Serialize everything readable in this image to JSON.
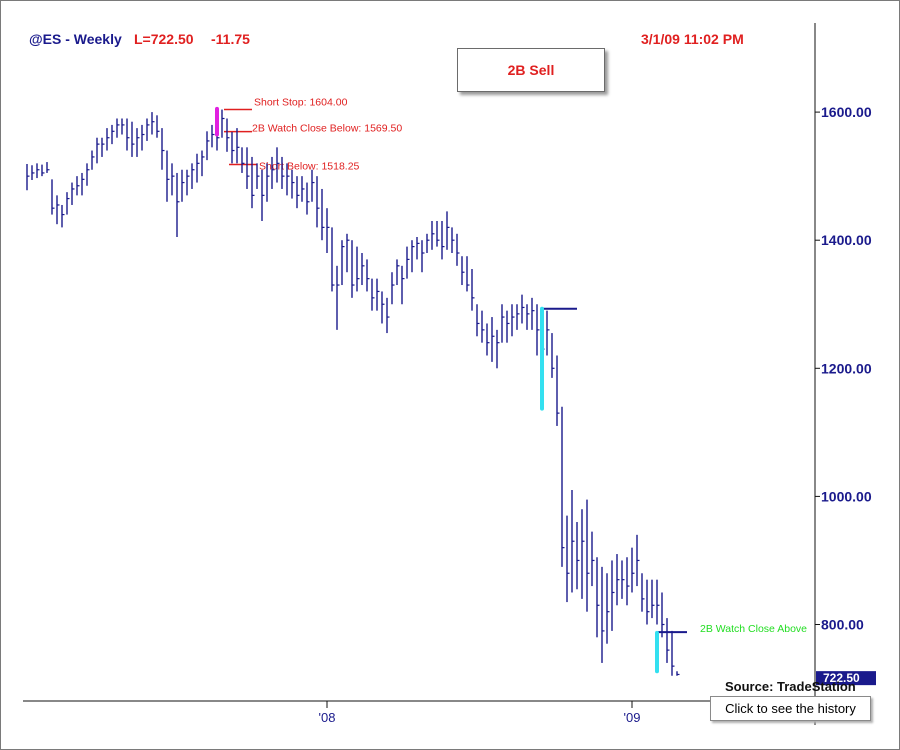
{
  "header": {
    "symbol_label": "@ES - Weekly",
    "last_label": "L=722.50",
    "change_label": "-11.75",
    "datetime_label": "3/1/09 11:02 PM"
  },
  "signal_box": {
    "label": "2B Sell"
  },
  "footer": {
    "source_label": "Source: TradeStation",
    "history_button_label": "Click to see the history"
  },
  "chart_data": {
    "type": "ohlc-bar",
    "title": "",
    "symbol": "@ES",
    "interval": "Weekly",
    "last_price": 722.5,
    "last_price_label": "722.50",
    "y_ticks": [
      {
        "value": 800,
        "label": "800.00"
      },
      {
        "value": 1000,
        "label": "1000.00"
      },
      {
        "value": 1200,
        "label": "1200.00"
      },
      {
        "value": 1400,
        "label": "1400.00"
      },
      {
        "value": 1600,
        "label": "1600.00"
      }
    ],
    "x_ticks": [
      {
        "label": "'08",
        "index": 60
      },
      {
        "label": "'09",
        "index": 121
      }
    ],
    "bar_count": 131,
    "ylim": [
      700,
      1720
    ],
    "colors": {
      "bars": "#1a1a8c",
      "sell_signal": "#e020e0",
      "buy_signal": "#33e0f0",
      "annotation_red": "#e02020",
      "annotation_green": "#22dd22"
    },
    "bars": [
      {
        "h": 1519,
        "l": 1478,
        "c": 1500
      },
      {
        "h": 1517,
        "l": 1494,
        "c": 1505
      },
      {
        "h": 1520,
        "l": 1497,
        "c": 1510
      },
      {
        "h": 1518,
        "l": 1500,
        "c": 1505
      },
      {
        "h": 1522,
        "l": 1505,
        "c": 1510
      },
      {
        "h": 1495,
        "l": 1440,
        "c": 1450
      },
      {
        "h": 1470,
        "l": 1425,
        "c": 1455
      },
      {
        "h": 1455,
        "l": 1420,
        "c": 1440
      },
      {
        "h": 1475,
        "l": 1440,
        "c": 1465
      },
      {
        "h": 1490,
        "l": 1455,
        "c": 1480
      },
      {
        "h": 1500,
        "l": 1470,
        "c": 1485
      },
      {
        "h": 1505,
        "l": 1470,
        "c": 1495
      },
      {
        "h": 1520,
        "l": 1485,
        "c": 1510
      },
      {
        "h": 1540,
        "l": 1510,
        "c": 1530
      },
      {
        "h": 1560,
        "l": 1520,
        "c": 1550
      },
      {
        "h": 1560,
        "l": 1530,
        "c": 1550
      },
      {
        "h": 1575,
        "l": 1540,
        "c": 1560
      },
      {
        "h": 1580,
        "l": 1550,
        "c": 1570
      },
      {
        "h": 1590,
        "l": 1560,
        "c": 1580
      },
      {
        "h": 1590,
        "l": 1565,
        "c": 1580
      },
      {
        "h": 1590,
        "l": 1540,
        "c": 1560
      },
      {
        "h": 1585,
        "l": 1530,
        "c": 1550
      },
      {
        "h": 1575,
        "l": 1530,
        "c": 1560
      },
      {
        "h": 1580,
        "l": 1540,
        "c": 1565
      },
      {
        "h": 1590,
        "l": 1555,
        "c": 1580
      },
      {
        "h": 1600,
        "l": 1565,
        "c": 1585
      },
      {
        "h": 1595,
        "l": 1560,
        "c": 1570
      },
      {
        "h": 1575,
        "l": 1510,
        "c": 1540
      },
      {
        "h": 1540,
        "l": 1460,
        "c": 1495
      },
      {
        "h": 1520,
        "l": 1470,
        "c": 1500
      },
      {
        "h": 1505,
        "l": 1405,
        "c": 1460
      },
      {
        "h": 1510,
        "l": 1460,
        "c": 1490
      },
      {
        "h": 1510,
        "l": 1470,
        "c": 1500
      },
      {
        "h": 1520,
        "l": 1480,
        "c": 1510
      },
      {
        "h": 1535,
        "l": 1490,
        "c": 1520
      },
      {
        "h": 1540,
        "l": 1500,
        "c": 1530
      },
      {
        "h": 1570,
        "l": 1525,
        "c": 1555
      },
      {
        "h": 1580,
        "l": 1545,
        "c": 1565
      },
      {
        "h": 1575,
        "l": 1540,
        "c": 1560
      },
      {
        "h": 1604,
        "l": 1560,
        "c": 1590
      },
      {
        "h": 1590,
        "l": 1538,
        "c": 1560
      },
      {
        "h": 1569,
        "l": 1520,
        "c": 1540
      },
      {
        "h": 1575,
        "l": 1520,
        "c": 1545
      },
      {
        "h": 1545,
        "l": 1505,
        "c": 1520
      },
      {
        "h": 1545,
        "l": 1480,
        "c": 1500
      },
      {
        "h": 1530,
        "l": 1450,
        "c": 1470
      },
      {
        "h": 1520,
        "l": 1480,
        "c": 1500
      },
      {
        "h": 1510,
        "l": 1430,
        "c": 1470
      },
      {
        "h": 1520,
        "l": 1460,
        "c": 1500
      },
      {
        "h": 1530,
        "l": 1480,
        "c": 1510
      },
      {
        "h": 1545,
        "l": 1490,
        "c": 1520
      },
      {
        "h": 1530,
        "l": 1480,
        "c": 1500
      },
      {
        "h": 1520,
        "l": 1470,
        "c": 1500
      },
      {
        "h": 1510,
        "l": 1465,
        "c": 1490
      },
      {
        "h": 1500,
        "l": 1450,
        "c": 1470
      },
      {
        "h": 1500,
        "l": 1460,
        "c": 1480
      },
      {
        "h": 1490,
        "l": 1440,
        "c": 1460
      },
      {
        "h": 1510,
        "l": 1460,
        "c": 1490
      },
      {
        "h": 1500,
        "l": 1420,
        "c": 1450
      },
      {
        "h": 1480,
        "l": 1400,
        "c": 1420
      },
      {
        "h": 1450,
        "l": 1380,
        "c": 1420
      },
      {
        "h": 1420,
        "l": 1320,
        "c": 1330
      },
      {
        "h": 1360,
        "l": 1260,
        "c": 1330
      },
      {
        "h": 1400,
        "l": 1330,
        "c": 1390
      },
      {
        "h": 1410,
        "l": 1350,
        "c": 1400
      },
      {
        "h": 1400,
        "l": 1310,
        "c": 1330
      },
      {
        "h": 1390,
        "l": 1320,
        "c": 1340
      },
      {
        "h": 1380,
        "l": 1330,
        "c": 1360
      },
      {
        "h": 1370,
        "l": 1320,
        "c": 1340
      },
      {
        "h": 1340,
        "l": 1290,
        "c": 1310
      },
      {
        "h": 1340,
        "l": 1290,
        "c": 1320
      },
      {
        "h": 1320,
        "l": 1270,
        "c": 1300
      },
      {
        "h": 1310,
        "l": 1255,
        "c": 1280
      },
      {
        "h": 1350,
        "l": 1300,
        "c": 1330
      },
      {
        "h": 1370,
        "l": 1330,
        "c": 1360
      },
      {
        "h": 1360,
        "l": 1300,
        "c": 1340
      },
      {
        "h": 1390,
        "l": 1340,
        "c": 1370
      },
      {
        "h": 1400,
        "l": 1350,
        "c": 1390
      },
      {
        "h": 1405,
        "l": 1370,
        "c": 1395
      },
      {
        "h": 1400,
        "l": 1350,
        "c": 1380
      },
      {
        "h": 1410,
        "l": 1380,
        "c": 1400
      },
      {
        "h": 1430,
        "l": 1385,
        "c": 1410
      },
      {
        "h": 1430,
        "l": 1390,
        "c": 1400
      },
      {
        "h": 1430,
        "l": 1370,
        "c": 1390
      },
      {
        "h": 1445,
        "l": 1385,
        "c": 1420
      },
      {
        "h": 1420,
        "l": 1380,
        "c": 1400
      },
      {
        "h": 1410,
        "l": 1360,
        "c": 1380
      },
      {
        "h": 1375,
        "l": 1330,
        "c": 1350
      },
      {
        "h": 1375,
        "l": 1320,
        "c": 1330
      },
      {
        "h": 1355,
        "l": 1290,
        "c": 1310
      },
      {
        "h": 1300,
        "l": 1250,
        "c": 1270
      },
      {
        "h": 1290,
        "l": 1240,
        "c": 1260
      },
      {
        "h": 1270,
        "l": 1220,
        "c": 1240
      },
      {
        "h": 1280,
        "l": 1210,
        "c": 1250
      },
      {
        "h": 1260,
        "l": 1200,
        "c": 1240
      },
      {
        "h": 1300,
        "l": 1240,
        "c": 1280
      },
      {
        "h": 1290,
        "l": 1240,
        "c": 1270
      },
      {
        "h": 1300,
        "l": 1250,
        "c": 1280
      },
      {
        "h": 1300,
        "l": 1260,
        "c": 1285
      },
      {
        "h": 1315,
        "l": 1270,
        "c": 1295
      },
      {
        "h": 1300,
        "l": 1260,
        "c": 1285
      },
      {
        "h": 1310,
        "l": 1260,
        "c": 1290
      },
      {
        "h": 1300,
        "l": 1220,
        "c": 1260
      },
      {
        "h": 1270,
        "l": 1210,
        "c": 1230
      },
      {
        "h": 1290,
        "l": 1220,
        "c": 1260
      },
      {
        "h": 1255,
        "l": 1185,
        "c": 1200
      },
      {
        "h": 1220,
        "l": 1110,
        "c": 1130
      },
      {
        "h": 1140,
        "l": 890,
        "c": 920
      },
      {
        "h": 970,
        "l": 835,
        "c": 880
      },
      {
        "h": 1010,
        "l": 850,
        "c": 930
      },
      {
        "h": 960,
        "l": 855,
        "c": 900
      },
      {
        "h": 980,
        "l": 840,
        "c": 930
      },
      {
        "h": 995,
        "l": 820,
        "c": 880
      },
      {
        "h": 945,
        "l": 860,
        "c": 900
      },
      {
        "h": 905,
        "l": 780,
        "c": 830
      },
      {
        "h": 890,
        "l": 740,
        "c": 790
      },
      {
        "h": 880,
        "l": 770,
        "c": 820
      },
      {
        "h": 900,
        "l": 790,
        "c": 850
      },
      {
        "h": 910,
        "l": 830,
        "c": 870
      },
      {
        "h": 900,
        "l": 840,
        "c": 870
      },
      {
        "h": 905,
        "l": 830,
        "c": 860
      },
      {
        "h": 920,
        "l": 850,
        "c": 880
      },
      {
        "h": 940,
        "l": 860,
        "c": 900
      },
      {
        "h": 880,
        "l": 820,
        "c": 840
      },
      {
        "h": 870,
        "l": 800,
        "c": 820
      },
      {
        "h": 870,
        "l": 810,
        "c": 830
      },
      {
        "h": 870,
        "l": 800,
        "c": 830
      },
      {
        "h": 850,
        "l": 780,
        "c": 800
      },
      {
        "h": 810,
        "l": 740,
        "c": 760
      },
      {
        "h": 790,
        "l": 720,
        "c": 735
      },
      {
        "h": 727,
        "l": 720,
        "c": 722
      }
    ],
    "annotations": [
      {
        "label": "Short Stop: 1604.00",
        "value": 1604.0,
        "from_index": 39,
        "color": "red"
      },
      {
        "label": "2B Watch Close Below: 1569.50",
        "value": 1569.5,
        "from_index": 39,
        "color": "red"
      },
      {
        "label": "Short Below: 1518.25",
        "value": 1518.25,
        "from_index": 40,
        "color": "red"
      },
      {
        "label": "2B Watch Close Above",
        "value": 788,
        "from_index": 126,
        "color": "green"
      }
    ],
    "signal_marks": [
      {
        "index": 38,
        "low": 1565,
        "high": 1605,
        "kind": "sell"
      },
      {
        "index": 103,
        "low": 1137,
        "high": 1293,
        "kind": "buy"
      },
      {
        "index": 126,
        "low": 727,
        "high": 787,
        "kind": "buy"
      }
    ],
    "level_lines": [
      {
        "value": 1293,
        "from_index": 103,
        "to_index": 110
      },
      {
        "value": 788,
        "from_index": 126,
        "to_index": 132
      }
    ]
  }
}
